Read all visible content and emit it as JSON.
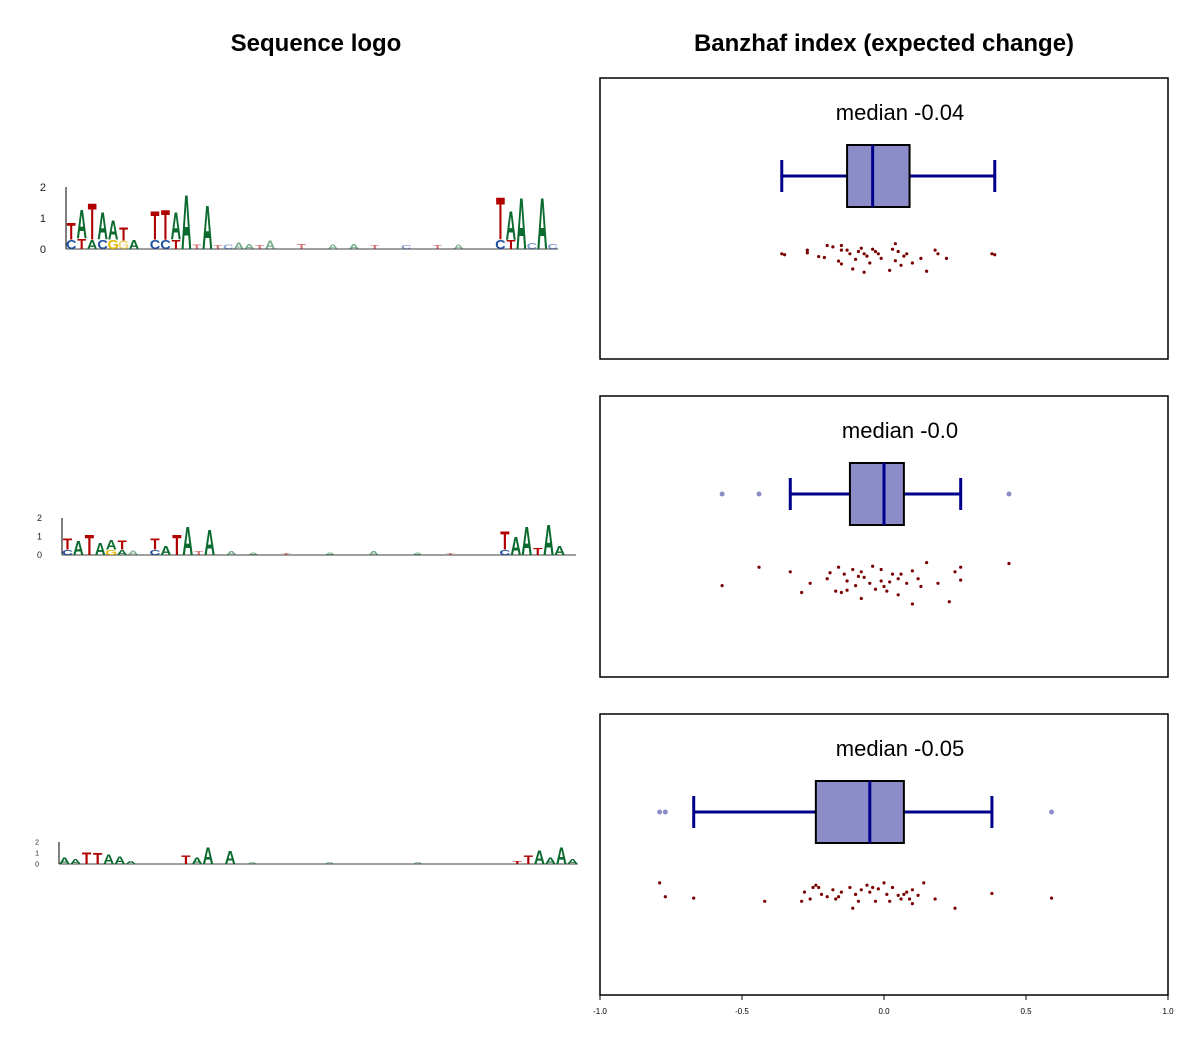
{
  "titles": {
    "left": "Sequence logo",
    "right": "Banzhaf index (expected change)"
  },
  "colors": {
    "A": "#0b6b2f",
    "C": "#1f4fa0",
    "G": "#e5b800",
    "T": "#b00000",
    "box_fill": "#8c8cc8",
    "whisker": "#00008b",
    "outlier": "#8c8cc8",
    "point": "#7a0000"
  },
  "chart_data": [
    {
      "type": "sequence-logo",
      "y_ticks": [
        "0",
        "1",
        "2"
      ],
      "ylim": [
        0,
        2
      ],
      "letters": [
        {
          "l": "C",
          "pos": 1,
          "h": 0.3
        },
        {
          "l": "T",
          "pos": 1,
          "h": 0.55
        },
        {
          "l": "T",
          "pos": 2,
          "h": 0.35
        },
        {
          "l": "A",
          "pos": 2,
          "h": 0.95
        },
        {
          "l": "A",
          "pos": 3,
          "h": 0.3
        },
        {
          "l": "T",
          "pos": 3,
          "h": 1.2
        },
        {
          "l": "C",
          "pos": 4,
          "h": 0.3
        },
        {
          "l": "A",
          "pos": 4,
          "h": 0.9
        },
        {
          "l": "G",
          "pos": 5,
          "h": 0.3
        },
        {
          "l": "A",
          "pos": 5,
          "h": 0.65
        },
        {
          "l": "G",
          "pos": 6,
          "h": 0.28
        },
        {
          "l": "T",
          "pos": 6,
          "h": 0.42
        },
        {
          "l": "A",
          "pos": 7,
          "h": 0.3
        },
        {
          "l": "C",
          "pos": 9,
          "h": 0.3
        },
        {
          "l": "T",
          "pos": 9,
          "h": 0.95
        },
        {
          "l": "C",
          "pos": 10,
          "h": 0.3
        },
        {
          "l": "T",
          "pos": 10,
          "h": 1.0
        },
        {
          "l": "T",
          "pos": 11,
          "h": 0.3
        },
        {
          "l": "A",
          "pos": 11,
          "h": 0.9
        },
        {
          "l": "A",
          "pos": 12,
          "h": 1.8
        },
        {
          "l": "T",
          "pos": 13,
          "h": 0.15
        },
        {
          "l": "A",
          "pos": 14,
          "h": 1.45
        },
        {
          "l": "T",
          "pos": 15,
          "h": 0.12
        },
        {
          "l": "C",
          "pos": 16,
          "h": 0.15
        },
        {
          "l": "A",
          "pos": 17,
          "h": 0.22
        },
        {
          "l": "A",
          "pos": 18,
          "h": 0.18
        },
        {
          "l": "T",
          "pos": 19,
          "h": 0.12
        },
        {
          "l": "A",
          "pos": 20,
          "h": 0.28
        },
        {
          "l": "T",
          "pos": 23,
          "h": 0.18
        },
        {
          "l": "A",
          "pos": 26,
          "h": 0.15
        },
        {
          "l": "A",
          "pos": 28,
          "h": 0.18
        },
        {
          "l": "T",
          "pos": 30,
          "h": 0.12
        },
        {
          "l": "C",
          "pos": 33,
          "h": 0.12
        },
        {
          "l": "T",
          "pos": 36,
          "h": 0.12
        },
        {
          "l": "A",
          "pos": 38,
          "h": 0.15
        },
        {
          "l": "C",
          "pos": 42,
          "h": 0.3
        },
        {
          "l": "T",
          "pos": 42,
          "h": 1.4
        },
        {
          "l": "T",
          "pos": 43,
          "h": 0.3
        },
        {
          "l": "A",
          "pos": 43,
          "h": 0.95
        },
        {
          "l": "A",
          "pos": 44,
          "h": 1.7
        },
        {
          "l": "C",
          "pos": 45,
          "h": 0.2
        },
        {
          "l": "A",
          "pos": 46,
          "h": 1.7
        },
        {
          "l": "C",
          "pos": 47,
          "h": 0.18
        }
      ]
    },
    {
      "type": "sequence-logo",
      "y_ticks": [
        "0",
        "1",
        "2"
      ],
      "ylim": [
        0,
        2
      ],
      "letters": [
        {
          "l": "C",
          "pos": 1,
          "h": 0.3
        },
        {
          "l": "T",
          "pos": 1,
          "h": 0.6
        },
        {
          "l": "A",
          "pos": 2,
          "h": 0.8
        },
        {
          "l": "T",
          "pos": 3,
          "h": 1.1
        },
        {
          "l": "A",
          "pos": 4,
          "h": 0.7
        },
        {
          "l": "G",
          "pos": 5,
          "h": 0.3
        },
        {
          "l": "A",
          "pos": 5,
          "h": 0.55
        },
        {
          "l": "A",
          "pos": 6,
          "h": 0.3
        },
        {
          "l": "T",
          "pos": 6,
          "h": 0.5
        },
        {
          "l": "A",
          "pos": 7,
          "h": 0.25
        },
        {
          "l": "C",
          "pos": 9,
          "h": 0.3
        },
        {
          "l": "T",
          "pos": 9,
          "h": 0.6
        },
        {
          "l": "A",
          "pos": 10,
          "h": 0.5
        },
        {
          "l": "T",
          "pos": 11,
          "h": 1.1
        },
        {
          "l": "A",
          "pos": 12,
          "h": 1.6
        },
        {
          "l": "T",
          "pos": 13,
          "h": 0.2
        },
        {
          "l": "A",
          "pos": 14,
          "h": 1.4
        },
        {
          "l": "A",
          "pos": 16,
          "h": 0.2
        },
        {
          "l": "A",
          "pos": 18,
          "h": 0.15
        },
        {
          "l": "T",
          "pos": 21,
          "h": 0.12
        },
        {
          "l": "A",
          "pos": 25,
          "h": 0.15
        },
        {
          "l": "A",
          "pos": 29,
          "h": 0.2
        },
        {
          "l": "A",
          "pos": 33,
          "h": 0.15
        },
        {
          "l": "T",
          "pos": 36,
          "h": 0.12
        },
        {
          "l": "C",
          "pos": 41,
          "h": 0.3
        },
        {
          "l": "T",
          "pos": 41,
          "h": 1.0
        },
        {
          "l": "A",
          "pos": 42,
          "h": 1.0
        },
        {
          "l": "A",
          "pos": 43,
          "h": 1.6
        },
        {
          "l": "T",
          "pos": 44,
          "h": 0.4
        },
        {
          "l": "A",
          "pos": 45,
          "h": 1.7
        },
        {
          "l": "A",
          "pos": 46,
          "h": 0.5
        }
      ]
    },
    {
      "type": "sequence-logo",
      "y_ticks": [
        "0",
        "1",
        "2"
      ],
      "ylim": [
        0,
        2
      ],
      "letters": [
        {
          "l": "A",
          "pos": 1,
          "h": 0.6
        },
        {
          "l": "A",
          "pos": 2,
          "h": 0.5
        },
        {
          "l": "T",
          "pos": 3,
          "h": 1.1
        },
        {
          "l": "T",
          "pos": 4,
          "h": 1.0
        },
        {
          "l": "A",
          "pos": 5,
          "h": 0.9
        },
        {
          "l": "A",
          "pos": 6,
          "h": 0.7
        },
        {
          "l": "A",
          "pos": 7,
          "h": 0.3
        },
        {
          "l": "T",
          "pos": 12,
          "h": 0.8
        },
        {
          "l": "A",
          "pos": 13,
          "h": 0.6
        },
        {
          "l": "A",
          "pos": 14,
          "h": 1.6
        },
        {
          "l": "A",
          "pos": 16,
          "h": 1.2
        },
        {
          "l": "A",
          "pos": 18,
          "h": 0.2
        },
        {
          "l": "A",
          "pos": 25,
          "h": 0.15
        },
        {
          "l": "A",
          "pos": 33,
          "h": 0.15
        },
        {
          "l": "T",
          "pos": 42,
          "h": 0.3
        },
        {
          "l": "T",
          "pos": 43,
          "h": 0.8
        },
        {
          "l": "A",
          "pos": 44,
          "h": 1.3
        },
        {
          "l": "A",
          "pos": 45,
          "h": 0.6
        },
        {
          "l": "A",
          "pos": 46,
          "h": 1.6
        },
        {
          "l": "A",
          "pos": 47,
          "h": 0.5
        }
      ]
    },
    {
      "type": "box",
      "title": "median -0.04",
      "xlim": [
        -1.0,
        1.0
      ],
      "median": -0.04,
      "q1": -0.13,
      "q3": 0.09,
      "whisker_low": -0.36,
      "whisker_high": 0.39,
      "outliers": [],
      "points": [
        [
          -0.36,
          0.3
        ],
        [
          -0.35,
          0.32
        ],
        [
          -0.27,
          0.22
        ],
        [
          -0.27,
          0.28
        ],
        [
          -0.23,
          0.36
        ],
        [
          -0.21,
          0.38
        ],
        [
          -0.2,
          0.12
        ],
        [
          -0.18,
          0.15
        ],
        [
          -0.16,
          0.46
        ],
        [
          -0.15,
          0.22
        ],
        [
          -0.15,
          0.52
        ],
        [
          -0.13,
          0.22
        ],
        [
          -0.12,
          0.3
        ],
        [
          -0.11,
          0.63
        ],
        [
          -0.1,
          0.42
        ],
        [
          -0.09,
          0.25
        ],
        [
          -0.08,
          0.18
        ],
        [
          -0.07,
          0.7
        ],
        [
          -0.07,
          0.3
        ],
        [
          -0.06,
          0.35
        ],
        [
          -0.05,
          0.5
        ],
        [
          -0.04,
          0.2
        ],
        [
          -0.03,
          0.25
        ],
        [
          -0.02,
          0.3
        ],
        [
          -0.01,
          0.4
        ],
        [
          0.02,
          0.66
        ],
        [
          0.03,
          0.2
        ],
        [
          0.04,
          0.45
        ],
        [
          0.05,
          0.25
        ],
        [
          0.06,
          0.55
        ],
        [
          0.07,
          0.35
        ],
        [
          0.08,
          0.3
        ],
        [
          0.1,
          0.5
        ],
        [
          0.13,
          0.4
        ],
        [
          0.15,
          0.68
        ],
        [
          0.18,
          0.22
        ],
        [
          0.19,
          0.3
        ],
        [
          0.22,
          0.4
        ],
        [
          0.38,
          0.3
        ],
        [
          0.39,
          0.32
        ],
        [
          -0.15,
          0.12
        ],
        [
          0.04,
          0.08
        ]
      ]
    },
    {
      "type": "box",
      "title": "median -0.0",
      "xlim": [
        -1.0,
        1.0
      ],
      "median": 0.0,
      "q1": -0.12,
      "q3": 0.07,
      "whisker_low": -0.33,
      "whisker_high": 0.27,
      "outliers": [
        -0.57,
        -0.44,
        0.44
      ],
      "points": [
        [
          -0.57,
          0.6
        ],
        [
          -0.44,
          0.2
        ],
        [
          -0.33,
          0.3
        ],
        [
          -0.29,
          0.75
        ],
        [
          -0.26,
          0.55
        ],
        [
          -0.2,
          0.45
        ],
        [
          -0.19,
          0.32
        ],
        [
          -0.17,
          0.72
        ],
        [
          -0.16,
          0.2
        ],
        [
          -0.15,
          0.75
        ],
        [
          -0.14,
          0.35
        ],
        [
          -0.13,
          0.7
        ],
        [
          -0.13,
          0.5
        ],
        [
          -0.11,
          0.25
        ],
        [
          -0.1,
          0.6
        ],
        [
          -0.09,
          0.4
        ],
        [
          -0.08,
          0.88
        ],
        [
          -0.08,
          0.3
        ],
        [
          -0.07,
          0.42
        ],
        [
          -0.05,
          0.55
        ],
        [
          -0.04,
          0.18
        ],
        [
          -0.03,
          0.68
        ],
        [
          -0.01,
          0.25
        ],
        [
          -0.01,
          0.5
        ],
        [
          0.0,
          0.62
        ],
        [
          0.01,
          0.72
        ],
        [
          0.02,
          0.52
        ],
        [
          0.03,
          0.35
        ],
        [
          0.05,
          0.8
        ],
        [
          0.05,
          0.45
        ],
        [
          0.06,
          0.35
        ],
        [
          0.08,
          0.55
        ],
        [
          0.1,
          0.28
        ],
        [
          0.12,
          0.45
        ],
        [
          0.1,
          1.0
        ],
        [
          0.13,
          0.62
        ],
        [
          0.15,
          0.1
        ],
        [
          0.19,
          0.55
        ],
        [
          0.23,
          0.95
        ],
        [
          0.25,
          0.3
        ],
        [
          0.27,
          0.48
        ],
        [
          0.27,
          0.2
        ],
        [
          0.44,
          0.12
        ]
      ]
    },
    {
      "type": "box",
      "title": "median -0.05",
      "xlim": [
        -1.0,
        1.0
      ],
      "median": -0.05,
      "q1": -0.24,
      "q3": 0.07,
      "whisker_low": -0.67,
      "whisker_high": 0.38,
      "outliers": [
        -0.79,
        -0.77,
        0.59
      ],
      "points": [
        [
          -0.79,
          0.15
        ],
        [
          -0.77,
          0.45
        ],
        [
          -0.67,
          0.48
        ],
        [
          -0.42,
          0.55
        ],
        [
          -0.29,
          0.55
        ],
        [
          -0.28,
          0.35
        ],
        [
          -0.26,
          0.5
        ],
        [
          -0.25,
          0.25
        ],
        [
          -0.24,
          0.2
        ],
        [
          -0.23,
          0.25
        ],
        [
          -0.22,
          0.4
        ],
        [
          -0.2,
          0.45
        ],
        [
          -0.18,
          0.3
        ],
        [
          -0.17,
          0.5
        ],
        [
          -0.16,
          0.45
        ],
        [
          -0.15,
          0.35
        ],
        [
          -0.12,
          0.25
        ],
        [
          -0.11,
          0.7
        ],
        [
          -0.1,
          0.4
        ],
        [
          -0.09,
          0.55
        ],
        [
          -0.08,
          0.3
        ],
        [
          -0.06,
          0.2
        ],
        [
          -0.05,
          0.35
        ],
        [
          -0.04,
          0.25
        ],
        [
          -0.03,
          0.55
        ],
        [
          -0.02,
          0.28
        ],
        [
          0.0,
          0.15
        ],
        [
          0.01,
          0.4
        ],
        [
          0.02,
          0.55
        ],
        [
          0.03,
          0.25
        ],
        [
          0.05,
          0.42
        ],
        [
          0.06,
          0.5
        ],
        [
          0.07,
          0.4
        ],
        [
          0.08,
          0.35
        ],
        [
          0.09,
          0.5
        ],
        [
          0.1,
          0.6
        ],
        [
          0.1,
          0.3
        ],
        [
          0.12,
          0.42
        ],
        [
          0.14,
          0.15
        ],
        [
          0.18,
          0.5
        ],
        [
          0.25,
          0.7
        ],
        [
          0.38,
          0.38
        ],
        [
          0.59,
          0.48
        ]
      ]
    }
  ],
  "x_axis": {
    "xlim": [
      -1.0,
      1.0
    ],
    "ticks": [
      -1.0,
      -0.5,
      0.0,
      0.5,
      1.0
    ],
    "tick_labels": [
      "-1.0",
      "-0.5",
      "0.0",
      "0.5",
      "1.0"
    ]
  }
}
